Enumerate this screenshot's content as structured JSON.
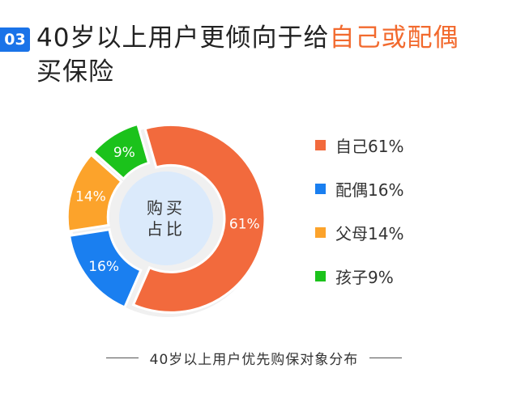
{
  "header": {
    "badge": "03",
    "title_part1": "40岁以上用户更倾向于给",
    "title_highlight": "自己或配偶",
    "title_part2": "买保险"
  },
  "chart_data": {
    "type": "pie",
    "center_label": [
      "购买",
      "占比"
    ],
    "categories": [
      "自己",
      "配偶",
      "父母",
      "孩子"
    ],
    "values": [
      61,
      16,
      14,
      9
    ],
    "slice_labels": [
      "61%",
      "16%",
      "14%",
      "9%"
    ],
    "legend_labels": [
      "自己61%",
      "配偶16%",
      "父母14%",
      "孩子9%"
    ],
    "colors": [
      "#f26a3d",
      "#1a7ff0",
      "#fca32b",
      "#1bc21b"
    ],
    "legend_position": "right"
  },
  "footer": {
    "caption": "40岁以上用户优先购保对象分布"
  }
}
